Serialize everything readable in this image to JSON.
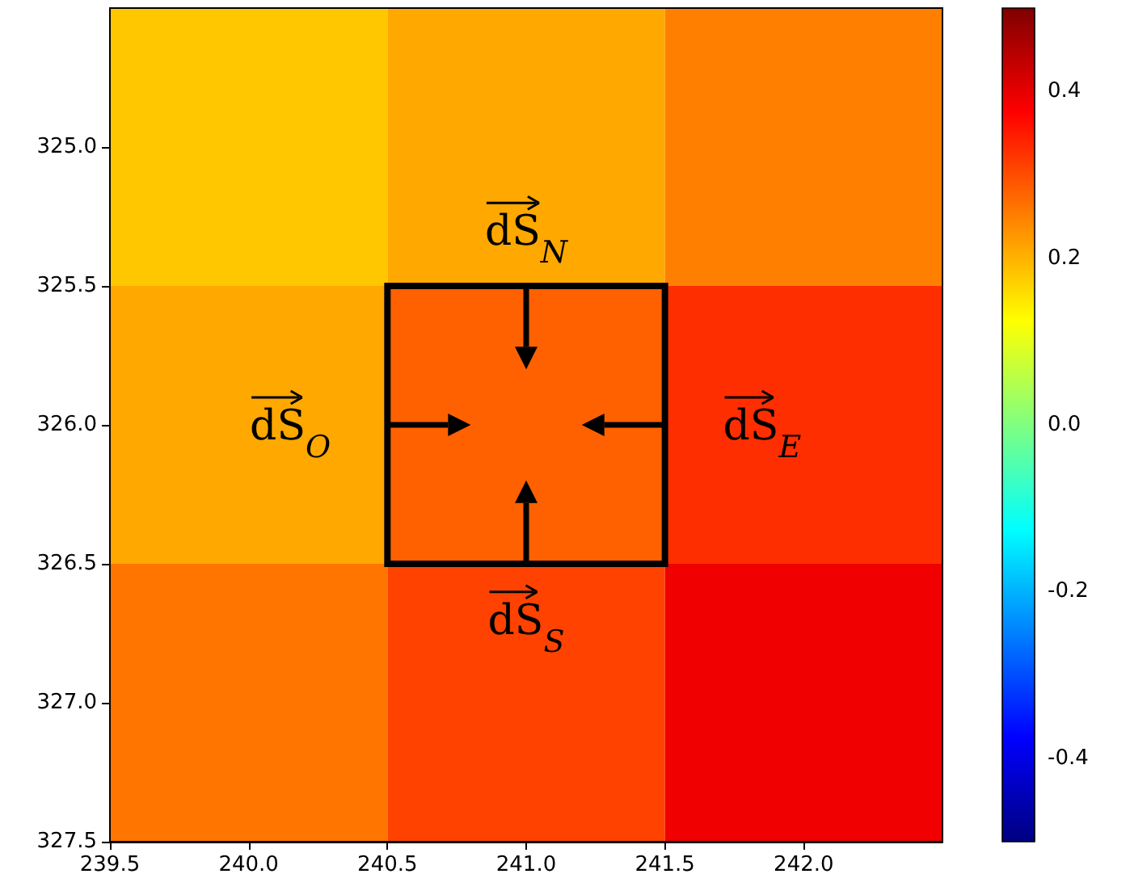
{
  "chart_data": {
    "type": "heatmap",
    "x": [
      240,
      241,
      242
    ],
    "y": [
      325,
      326,
      327
    ],
    "cells": [
      [
        0.18,
        0.21,
        0.25
      ],
      [
        0.21,
        0.28,
        0.33
      ],
      [
        0.26,
        0.31,
        0.39
      ]
    ],
    "xlim": [
      239.5,
      242.5
    ],
    "xticks": [
      239.5,
      {
        "value": 240,
        "label": "240.0"
      },
      240.5,
      {
        "value": 241,
        "label": "241.0"
      },
      241.5,
      {
        "value": 242,
        "label": "242.0"
      }
    ],
    "ylim": [
      327.5,
      324.5
    ],
    "yticks": [
      {
        "value": 325,
        "label": "325.0"
      },
      325.5,
      {
        "value": 326,
        "label": "326.0"
      },
      326.5,
      {
        "value": 327,
        "label": "327.0"
      },
      327.5
    ],
    "clim": [
      -0.5,
      0.5
    ],
    "cticks": [
      -0.4,
      -0.2,
      {
        "value": 0,
        "label": "0.0"
      },
      0.2,
      0.4
    ],
    "grid": false,
    "annotations": [
      "dS$_{N}$",
      "dS$_{O}$",
      "dS$_{E}$",
      "dS$_{S}$"
    ]
  }
}
